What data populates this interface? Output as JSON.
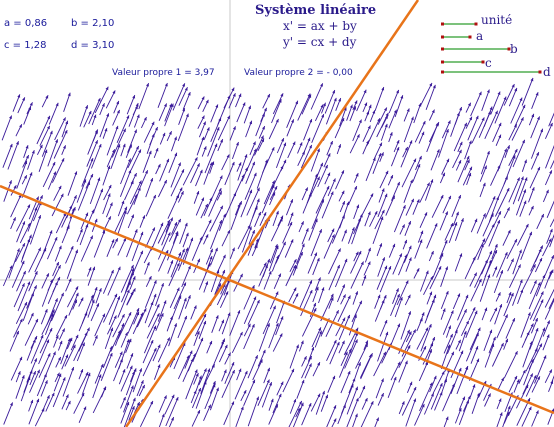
{
  "params": {
    "a": "a = 0,86",
    "b": "b = 2,10",
    "c": "c = 1,28",
    "d": "d = 3,10"
  },
  "title": "Système linéaire",
  "equations": {
    "line1": "x' = ax + by",
    "line2": "y' = cx + dy"
  },
  "eigenvalues": {
    "v1": "Valeur propre 1 =   3,97",
    "v2": "Valeur propre 2 =  - 0,00"
  },
  "segments": {
    "unit": "unité",
    "a": "a",
    "b": "b",
    "c": "c",
    "d": "d"
  },
  "colors": {
    "arrow": "#3a1a9a",
    "eigenline": "#e8741a",
    "axis": "#c8c8c8",
    "segment": "#2e9e2e",
    "endpoint": "#b01010",
    "text": "#1a1a9a"
  }
}
